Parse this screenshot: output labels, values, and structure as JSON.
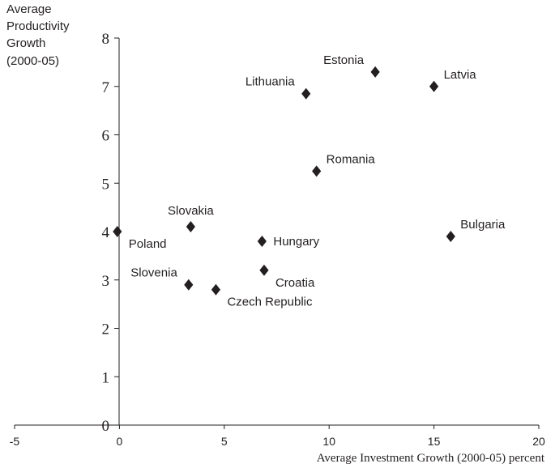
{
  "chart_data": {
    "type": "scatter",
    "title": "",
    "ylabel_lines": [
      "Average",
      "Productivity",
      "Growth",
      "(2000-05)"
    ],
    "xlabel": "Average Investment Growth (2000-05) percent",
    "xlim": [
      -5,
      20
    ],
    "ylim": [
      0,
      8
    ],
    "x_ticks": [
      -5,
      0,
      5,
      10,
      15,
      20
    ],
    "x_tick_labels": [
      "-5",
      "0",
      "5",
      "10",
      "15",
      "20"
    ],
    "y_ticks": [
      0,
      1,
      2,
      3,
      4,
      5,
      6,
      7,
      8
    ],
    "y_tick_labels": [
      "0",
      "1",
      "2",
      "3",
      "4",
      "5",
      "6",
      "7",
      "8"
    ],
    "grid": false,
    "legend": "none",
    "marker": "diamond",
    "marker_color": "#231f20",
    "points": [
      {
        "label": "Estonia",
        "x": 12.2,
        "y": 7.3,
        "label_pos": "upper-left"
      },
      {
        "label": "Latvia",
        "x": 15.0,
        "y": 7.0,
        "label_pos": "upper-right"
      },
      {
        "label": "Lithuania",
        "x": 8.9,
        "y": 6.85,
        "label_pos": "upper-left"
      },
      {
        "label": "Romania",
        "x": 9.4,
        "y": 5.25,
        "label_pos": "upper-right"
      },
      {
        "label": "Slovakia",
        "x": 3.4,
        "y": 4.1,
        "label_pos": "above"
      },
      {
        "label": "Poland",
        "x": -0.1,
        "y": 4.0,
        "label_pos": "lower-right"
      },
      {
        "label": "Hungary",
        "x": 6.8,
        "y": 3.8,
        "label_pos": "right"
      },
      {
        "label": "Bulgaria",
        "x": 15.8,
        "y": 3.9,
        "label_pos": "upper-right"
      },
      {
        "label": "Croatia",
        "x": 6.9,
        "y": 3.2,
        "label_pos": "lower-right"
      },
      {
        "label": "Slovenia",
        "x": 3.3,
        "y": 2.9,
        "label_pos": "upper-left"
      },
      {
        "label": "Czech Republic",
        "x": 4.6,
        "y": 2.8,
        "label_pos": "lower-right"
      }
    ]
  }
}
